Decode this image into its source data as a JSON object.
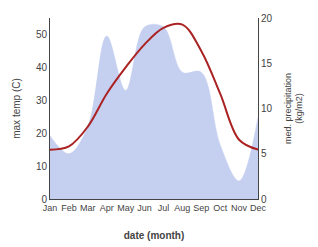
{
  "chart_data": {
    "type": "line",
    "xlabel": "date (month)",
    "ylabel": "max temp (C)",
    "y2label": "med. precipitation\n(kg/m2)",
    "categories": [
      "Jan",
      "Feb",
      "Mar",
      "Apr",
      "May",
      "Jun",
      "Jul",
      "Aug",
      "Sep",
      "Oct",
      "Nov",
      "Dec"
    ],
    "series": [
      {
        "type": "area",
        "axis": "y2",
        "color": "#c5cff0",
        "values": [
          7,
          5,
          8,
          18,
          12,
          19,
          19,
          14,
          14,
          6,
          2,
          9
        ]
      },
      {
        "type": "line",
        "axis": "y",
        "color": "#aa2222",
        "values": [
          15,
          16,
          22,
          32,
          40,
          47,
          52,
          53,
          45,
          32,
          18,
          15
        ]
      }
    ],
    "ylim": [
      0,
      55
    ],
    "yticks": [
      0,
      10,
      20,
      30,
      40,
      50
    ],
    "y2lim": [
      0,
      20
    ],
    "y2ticks": [
      0,
      5,
      10,
      15,
      20
    ],
    "grid": false
  }
}
